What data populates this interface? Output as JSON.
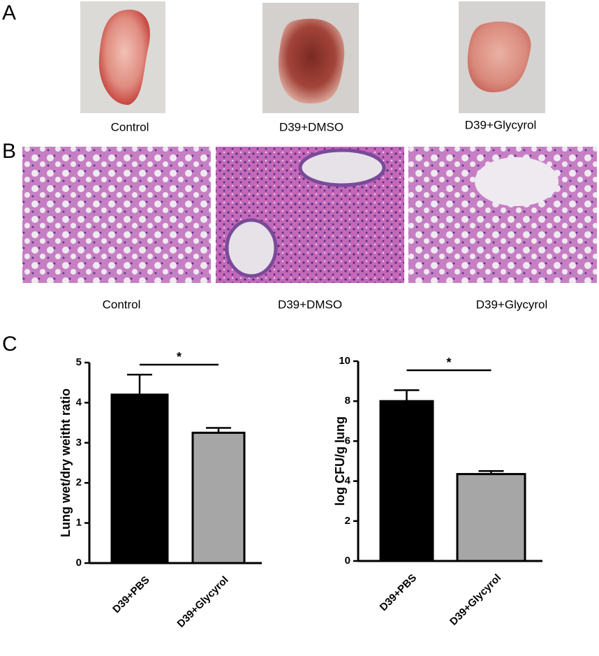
{
  "panels": [
    "A",
    "B",
    "C"
  ],
  "photos_a": [
    "Control",
    "D39+DMSO",
    "D39+Glycyrol"
  ],
  "photos_b": [
    "Control",
    "D39+DMSO",
    "D39+Glycyrol"
  ],
  "chart_data": [
    {
      "type": "bar",
      "ylabel": "Lung wet/dry weitht ratio",
      "categories": [
        "D39+PBS",
        "D39+Glycyrol"
      ],
      "values": [
        4.2,
        3.25
      ],
      "errors": [
        0.5,
        0.12
      ],
      "colors": [
        "#000000",
        "#a6a6a6"
      ],
      "ylim": [
        0,
        5
      ],
      "yticks": [
        0,
        1,
        2,
        3,
        4,
        5
      ],
      "annotation": "*"
    },
    {
      "type": "bar",
      "ylabel": "log CFU/g lung",
      "categories": [
        "D39+PBS",
        "D39+Glycyrol"
      ],
      "values": [
        8.0,
        4.35
      ],
      "errors": [
        0.55,
        0.15
      ],
      "colors": [
        "#000000",
        "#a6a6a6"
      ],
      "ylim": [
        0,
        10
      ],
      "yticks": [
        0,
        2,
        4,
        6,
        8,
        10
      ],
      "annotation": "*"
    }
  ]
}
